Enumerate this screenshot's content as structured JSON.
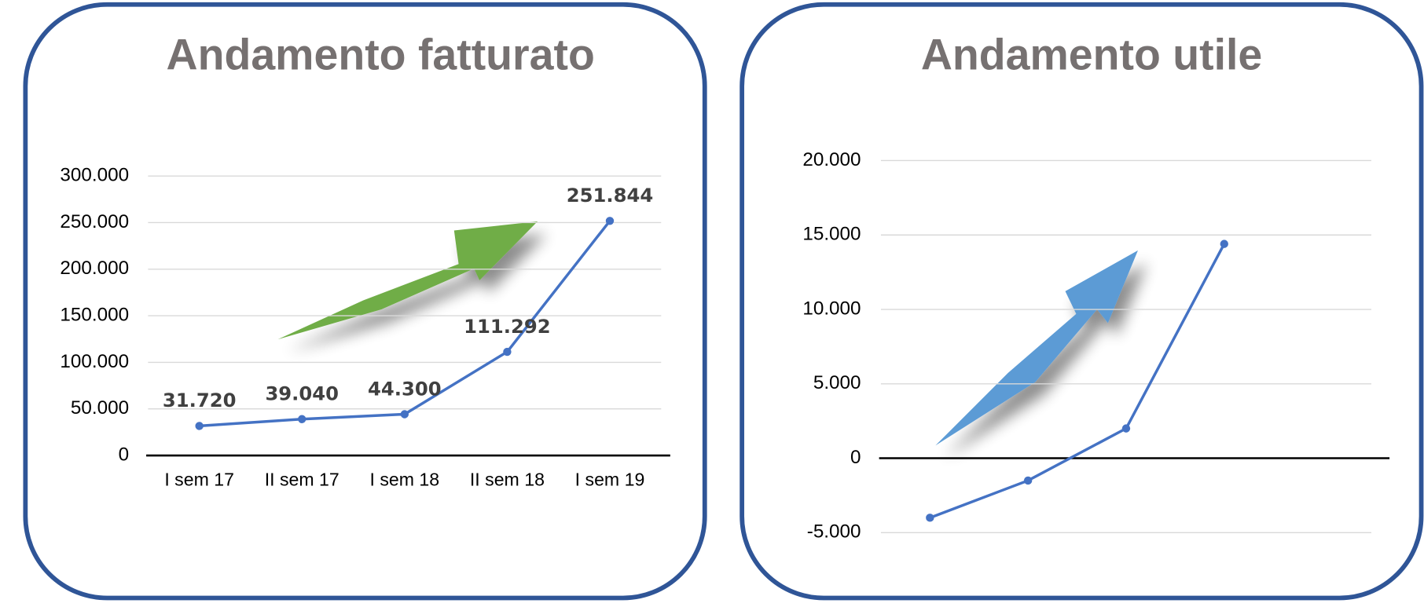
{
  "chart_data": [
    {
      "type": "line",
      "title": "Andamento fatturato",
      "categories": [
        "I sem 17",
        "II sem 17",
        "I sem 18",
        "II sem 18",
        "I sem 19"
      ],
      "values": [
        31720,
        39040,
        44300,
        111292,
        251844
      ],
      "value_labels": [
        "31.720",
        "39.040",
        "44.300",
        "111.292",
        "251.844"
      ],
      "color": "#4472c4",
      "ylim": [
        0,
        300000
      ],
      "yticks": [
        0,
        {
          "value": 50000,
          "label": "50.000"
        },
        {
          "value": 100000,
          "label": "100.000"
        },
        {
          "value": 150000,
          "label": "150.000"
        },
        {
          "value": 200000,
          "label": "200.000"
        },
        {
          "value": 250000,
          "label": "250.000"
        },
        {
          "value": 300000,
          "label": "300.000"
        }
      ],
      "grid": true
    },
    {
      "type": "line",
      "title": "Andamento utile",
      "categories": [
        null,
        null,
        null,
        null,
        null
      ],
      "values": [
        -4000,
        -1500,
        2000,
        14400,
        null
      ],
      "color": "#4472c4",
      "ylim": [
        -5000,
        20000
      ],
      "yticks": [
        {
          "value": -5000,
          "label": "-5.000"
        },
        0,
        {
          "value": 5000,
          "label": "5.000"
        },
        {
          "value": 10000,
          "label": "10.000"
        },
        {
          "value": 15000,
          "label": "15.000"
        },
        {
          "value": 20000,
          "label": "20.000"
        }
      ],
      "grid": true
    }
  ]
}
